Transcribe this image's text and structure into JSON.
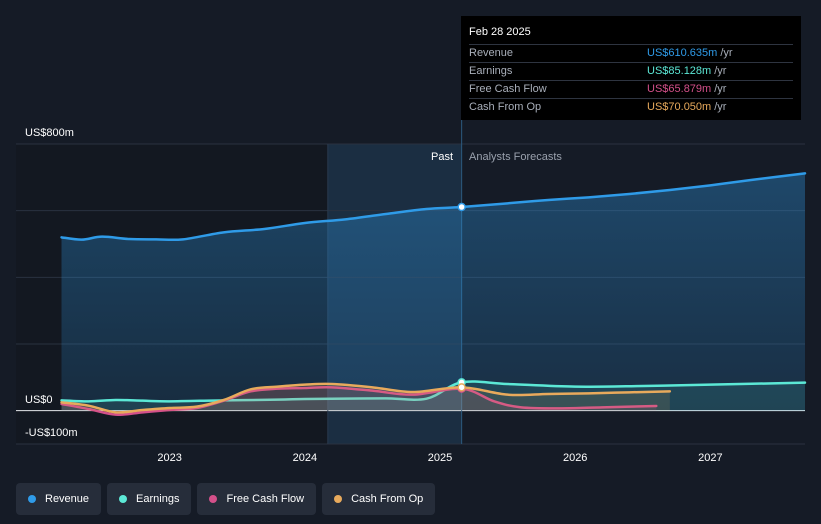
{
  "tooltip": {
    "date": "Feb 28 2025",
    "unit": "/yr",
    "rows": [
      {
        "label": "Revenue",
        "value": "US$610.635m",
        "color": "#2f9be8"
      },
      {
        "label": "Earnings",
        "value": "US$85.128m",
        "color": "#5ce8d6"
      },
      {
        "label": "Free Cash Flow",
        "value": "US$65.879m",
        "color": "#d4508a"
      },
      {
        "label": "Cash From Op",
        "value": "US$70.050m",
        "color": "#e8aa5c"
      }
    ]
  },
  "legend": [
    {
      "label": "Revenue",
      "color": "#2f9be8"
    },
    {
      "label": "Earnings",
      "color": "#5ce8d6"
    },
    {
      "label": "Free Cash Flow",
      "color": "#d4508a"
    },
    {
      "label": "Cash From Op",
      "color": "#e8aa5c"
    }
  ],
  "chart_data": {
    "type": "line",
    "title": "",
    "xlabel": "",
    "ylabel": "",
    "ylim": [
      -100,
      800
    ],
    "xlim": [
      2022.1,
      2027.7
    ],
    "y_tick_labels": {
      "top": "US$800m",
      "zero": "US$0",
      "bottom": "-US$100m"
    },
    "x_ticks": [
      2023,
      2024,
      2025,
      2026,
      2027
    ],
    "x_tick_labels": [
      "2023",
      "2024",
      "2025",
      "2026",
      "2027"
    ],
    "past_label": "Past",
    "forecast_label": "Analysts Forecasts",
    "past_start": 2024.17,
    "divider_x": 2025.16,
    "highlight_x": 2025.16,
    "series": [
      {
        "name": "Revenue",
        "color": "#2f9be8",
        "fill": true,
        "points": [
          [
            2022.2,
            520
          ],
          [
            2022.35,
            513
          ],
          [
            2022.5,
            522
          ],
          [
            2022.7,
            515
          ],
          [
            2022.9,
            514
          ],
          [
            2023.1,
            514
          ],
          [
            2023.4,
            535
          ],
          [
            2023.7,
            545
          ],
          [
            2024.0,
            563
          ],
          [
            2024.3,
            574
          ],
          [
            2024.6,
            590
          ],
          [
            2024.9,
            605
          ],
          [
            2025.16,
            611
          ],
          [
            2025.5,
            622
          ],
          [
            2025.8,
            632
          ],
          [
            2026.1,
            640
          ],
          [
            2026.4,
            650
          ],
          [
            2026.7,
            662
          ],
          [
            2027.0,
            676
          ],
          [
            2027.3,
            692
          ],
          [
            2027.7,
            712
          ]
        ]
      },
      {
        "name": "Earnings",
        "color": "#5ce8d6",
        "fill": false,
        "points": [
          [
            2022.2,
            31
          ],
          [
            2022.4,
            28
          ],
          [
            2022.6,
            32
          ],
          [
            2022.8,
            30
          ],
          [
            2023.0,
            28
          ],
          [
            2023.4,
            31
          ],
          [
            2023.8,
            33
          ],
          [
            2024.0,
            35
          ],
          [
            2024.3,
            36
          ],
          [
            2024.6,
            37
          ],
          [
            2024.9,
            36
          ],
          [
            2025.16,
            85
          ],
          [
            2025.5,
            80
          ],
          [
            2026.0,
            72
          ],
          [
            2026.5,
            74
          ],
          [
            2027.0,
            78
          ],
          [
            2027.7,
            84
          ]
        ]
      },
      {
        "name": "Free Cash Flow",
        "color": "#d4508a",
        "fill": false,
        "points": [
          [
            2022.2,
            20
          ],
          [
            2022.4,
            5
          ],
          [
            2022.6,
            -12
          ],
          [
            2022.8,
            -5
          ],
          [
            2023.0,
            2
          ],
          [
            2023.2,
            8
          ],
          [
            2023.4,
            30
          ],
          [
            2023.6,
            58
          ],
          [
            2023.8,
            66
          ],
          [
            2024.0,
            68
          ],
          [
            2024.2,
            70
          ],
          [
            2024.5,
            60
          ],
          [
            2024.8,
            48
          ],
          [
            2025.16,
            66
          ],
          [
            2025.4,
            28
          ],
          [
            2025.6,
            10
          ],
          [
            2025.9,
            7
          ],
          [
            2026.2,
            10
          ],
          [
            2026.6,
            14
          ]
        ]
      },
      {
        "name": "Cash From Op",
        "color": "#e8aa5c",
        "fill": false,
        "points": [
          [
            2022.2,
            25
          ],
          [
            2022.4,
            15
          ],
          [
            2022.6,
            -5
          ],
          [
            2022.8,
            2
          ],
          [
            2023.0,
            8
          ],
          [
            2023.2,
            12
          ],
          [
            2023.4,
            32
          ],
          [
            2023.6,
            64
          ],
          [
            2023.8,
            72
          ],
          [
            2024.0,
            78
          ],
          [
            2024.2,
            80
          ],
          [
            2024.5,
            70
          ],
          [
            2024.8,
            56
          ],
          [
            2025.16,
            70
          ],
          [
            2025.5,
            48
          ],
          [
            2025.8,
            50
          ],
          [
            2026.1,
            52
          ],
          [
            2026.4,
            55
          ],
          [
            2026.7,
            58
          ]
        ]
      }
    ]
  }
}
